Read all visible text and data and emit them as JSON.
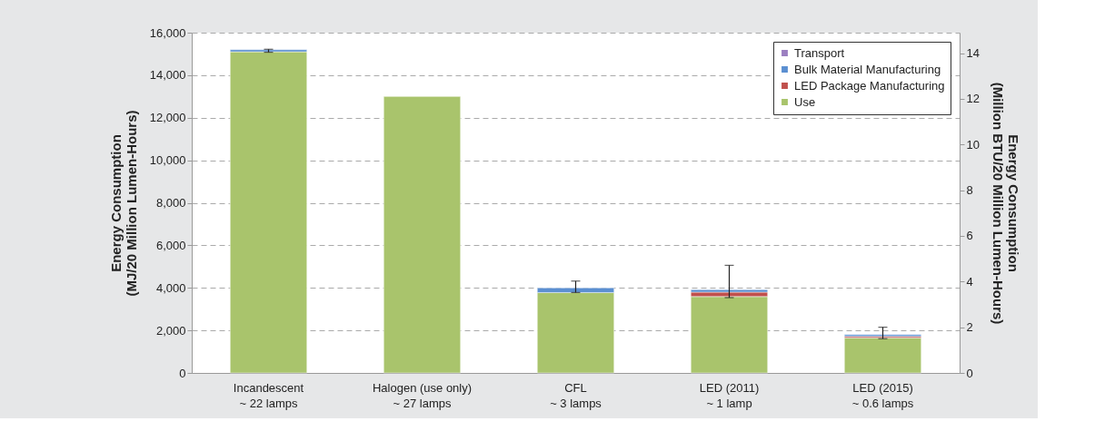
{
  "chart_data": {
    "type": "bar",
    "stacked": true,
    "categories": [
      "Incandescent\n~ 22 lamps",
      "Halogen (use only)\n~ 27 lamps",
      "CFL\n~ 3 lamps",
      "LED (2011)\n~ 1 lamp",
      "LED (2015)\n~ 0.6 lamps"
    ],
    "ylabel": "Energy Consumption\n(MJ/20 Million Lumen-Hours)",
    "y2label": "Energy Consumption\n(Million BTU/20 Million Lumen-Hours)",
    "series": [
      {
        "name": "Use",
        "color": "#a9c46c",
        "values": [
          15100,
          13000,
          3780,
          3590,
          1650
        ]
      },
      {
        "name": "LED Package Manufacturing",
        "color": "#c0504d",
        "values": [
          null,
          null,
          null,
          210,
          70
        ]
      },
      {
        "name": "Bulk Material Manufacturing",
        "color": "#5b8fd1",
        "values": [
          100,
          null,
          220,
          120,
          80
        ],
        "errors": [
          [
            15080,
            15220
          ],
          null,
          [
            3780,
            4320
          ],
          [
            3540,
            5060
          ],
          [
            1610,
            2150
          ]
        ]
      },
      {
        "name": "Transport",
        "color": "#9b7fc0",
        "values": [
          null,
          null,
          null,
          null,
          null
        ]
      }
    ],
    "ylim": [
      0,
      16000
    ],
    "yticks": [
      0,
      {
        "value": 2000,
        "label": "2,000"
      },
      {
        "value": 4000,
        "label": "4,000"
      },
      {
        "value": 6000,
        "label": "6,000"
      },
      {
        "value": 8000,
        "label": "8,000"
      },
      {
        "value": 10000,
        "label": "10,000"
      },
      {
        "value": 12000,
        "label": "12,000"
      },
      {
        "value": 14000,
        "label": "14,000"
      },
      {
        "value": 16000,
        "label": "16,000"
      }
    ],
    "y2lim": [
      0,
      14.9
    ],
    "y2ticks": [
      0,
      2,
      4,
      6,
      8,
      10,
      12,
      14
    ],
    "grid": "y",
    "legend": "top right"
  }
}
